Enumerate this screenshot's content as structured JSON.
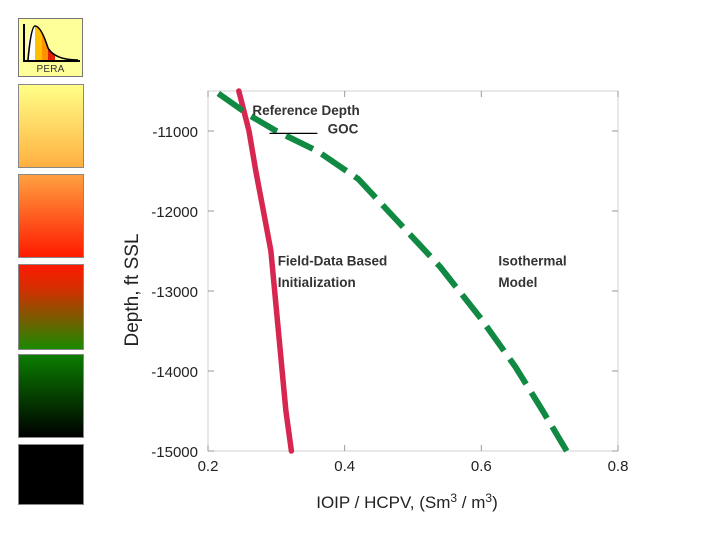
{
  "logo": {
    "text": "PERA"
  },
  "colors": {
    "reference_line": "#d7264f",
    "field_data": "#d7264f",
    "isothermal": "#108a43",
    "goc_line": "#000000"
  },
  "chart_data": {
    "type": "line",
    "title": "",
    "xlabel_main": "IOIP / HCPV, (Sm",
    "xlabel_sup1": "3",
    "xlabel_mid": " / m",
    "xlabel_sup2": "3",
    "xlabel_end": ")",
    "ylabel": "Depth, ft SSL",
    "xlim": [
      0.2,
      0.8
    ],
    "ylim": [
      -15000,
      -10500
    ],
    "xticks": [
      0.2,
      0.4,
      0.6,
      0.8
    ],
    "xtick_labels": [
      "0.2",
      "0.4",
      "0.6",
      "0.8"
    ],
    "yticks": [
      -11000,
      -12000,
      -13000,
      -14000,
      -15000
    ],
    "ytick_labels": [
      "-11000",
      "-12000",
      "-13000",
      "-14000",
      "-15000"
    ],
    "grid": false,
    "series": [
      {
        "name": "Field-Data Based Initialization",
        "style": "solid",
        "x": [
          0.245,
          0.26,
          0.27,
          0.281,
          0.292,
          0.303,
          0.314,
          0.322
        ],
        "y": [
          -10500,
          -11000,
          -11500,
          -12000,
          -12500,
          -13500,
          -14500,
          -15000
        ]
      },
      {
        "name": "Isothermal Model",
        "style": "dashed",
        "x": [
          0.215,
          0.26,
          0.3,
          0.36,
          0.42,
          0.48,
          0.54,
          0.6,
          0.65,
          0.69,
          0.725
        ],
        "y": [
          -10530,
          -10800,
          -11000,
          -11250,
          -11600,
          -12150,
          -12700,
          -13350,
          -13950,
          -14500,
          -15000
        ]
      }
    ],
    "annotations": [
      {
        "name": "reference-depth",
        "text": "Reference Depth",
        "x": 0.265,
        "y": -10800
      },
      {
        "name": "goc",
        "text": "GOC",
        "x": 0.375,
        "y": -11030
      },
      {
        "name": "field-data-line1",
        "text": "Field-Data Based",
        "x": 0.302,
        "y": -12680
      },
      {
        "name": "field-data-line2",
        "text": "Initialization",
        "x": 0.302,
        "y": -12950
      },
      {
        "name": "isothermal-line1",
        "text": "Isothermal",
        "x": 0.625,
        "y": -12680
      },
      {
        "name": "isothermal-line2",
        "text": "Model",
        "x": 0.625,
        "y": -12950
      }
    ],
    "goc_marker": {
      "x_start": 0.29,
      "x_end": 0.36,
      "y": -11030
    }
  }
}
